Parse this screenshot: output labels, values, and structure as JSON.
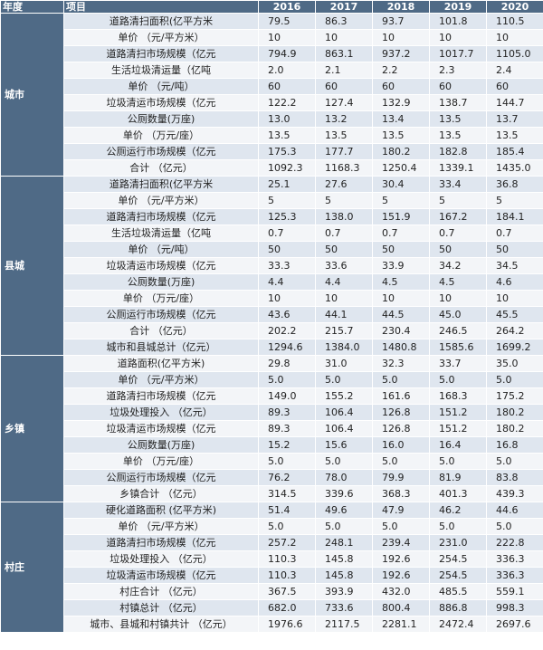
{
  "header": {
    "year_col": "年度",
    "item_col": "项目",
    "years": [
      "2016",
      "2017",
      "2018",
      "2019",
      "2020"
    ]
  },
  "groups": [
    {
      "name": "城市",
      "rows": [
        {
          "item": "道路清扫面积(亿平方米",
          "values": [
            "79.5",
            "86.3",
            "93.7",
            "101.8",
            "110.5"
          ]
        },
        {
          "item": "单价  （元/平方米）",
          "values": [
            "10",
            "10",
            "10",
            "10",
            "10"
          ]
        },
        {
          "item": "道路清扫市场规模（亿元",
          "values": [
            "794.9",
            "863.1",
            "937.2",
            "1017.7",
            "1105.0"
          ]
        },
        {
          "item": "生活垃圾清运量（亿吨",
          "values": [
            "2.0",
            "2.1",
            "2.2",
            "2.3",
            "2.4"
          ]
        },
        {
          "item": "单价  （元/吨）",
          "values": [
            "60",
            "60",
            "60",
            "60",
            "60"
          ]
        },
        {
          "item": "垃圾清运市场规模（亿元",
          "values": [
            "122.2",
            "127.4",
            "132.9",
            "138.7",
            "144.7"
          ]
        },
        {
          "item": "公厕数量(万座)",
          "values": [
            "13.0",
            "13.2",
            "13.4",
            "13.5",
            "13.7"
          ]
        },
        {
          "item": "单价  （万元/座）",
          "values": [
            "13.5",
            "13.5",
            "13.5",
            "13.5",
            "13.5"
          ]
        },
        {
          "item": "公厕运行市场规模（亿元",
          "values": [
            "175.3",
            "177.7",
            "180.2",
            "182.8",
            "185.4"
          ]
        },
        {
          "item": "合计  （亿元）",
          "values": [
            "1092.3",
            "1168.3",
            "1250.4",
            "1339.1",
            "1435.0"
          ]
        }
      ]
    },
    {
      "name": "县城",
      "rows": [
        {
          "item": "道路清扫面积(亿平方米",
          "values": [
            "25.1",
            "27.6",
            "30.4",
            "33.4",
            "36.8"
          ]
        },
        {
          "item": "单价  （元/平方米）",
          "values": [
            "5",
            "5",
            "5",
            "5",
            "5"
          ]
        },
        {
          "item": "道路清扫市场规模（亿元",
          "values": [
            "125.3",
            "138.0",
            "151.9",
            "167.2",
            "184.1"
          ]
        },
        {
          "item": "生活垃圾清运量（亿吨",
          "values": [
            "0.7",
            "0.7",
            "0.7",
            "0.7",
            "0.7"
          ]
        },
        {
          "item": "单价  （元/吨）",
          "values": [
            "50",
            "50",
            "50",
            "50",
            "50"
          ]
        },
        {
          "item": "垃圾清运市场规模（亿元",
          "values": [
            "33.3",
            "33.6",
            "33.9",
            "34.2",
            "34.5"
          ]
        },
        {
          "item": "公厕数量(万座)",
          "values": [
            "4.4",
            "4.4",
            "4.5",
            "4.5",
            "4.6"
          ]
        },
        {
          "item": "单价  （万元/座）",
          "values": [
            "10",
            "10",
            "10",
            "10",
            "10"
          ]
        },
        {
          "item": "公厕运行市场规模（亿元",
          "values": [
            "43.6",
            "44.1",
            "44.5",
            "45.0",
            "45.5"
          ]
        },
        {
          "item": "合计  （亿元）",
          "values": [
            "202.2",
            "215.7",
            "230.4",
            "246.5",
            "264.2"
          ]
        },
        {
          "item": "城市和县城总计（亿元）",
          "values": [
            "1294.6",
            "1384.0",
            "1480.8",
            "1585.6",
            "1699.2"
          ]
        }
      ]
    },
    {
      "name": "乡镇",
      "rows": [
        {
          "item": "道路面积(亿平方米)",
          "values": [
            "29.8",
            "31.0",
            "32.3",
            "33.7",
            "35.0"
          ]
        },
        {
          "item": "单价  （元/平方米）",
          "values": [
            "5.0",
            "5.0",
            "5.0",
            "5.0",
            "5.0"
          ]
        },
        {
          "item": "道路清扫市场规模（亿元",
          "values": [
            "149.0",
            "155.2",
            "161.6",
            "168.3",
            "175.2"
          ]
        },
        {
          "item": "垃圾处理投入  （亿元）",
          "values": [
            "89.3",
            "106.4",
            "126.8",
            "151.2",
            "180.2"
          ]
        },
        {
          "item": "垃圾清运市场规模（亿元",
          "values": [
            "89.3",
            "106.4",
            "126.8",
            "151.2",
            "180.2"
          ]
        },
        {
          "item": "公厕数量(万座)",
          "values": [
            "15.2",
            "15.6",
            "16.0",
            "16.4",
            "16.8"
          ]
        },
        {
          "item": "单价  （万元/座）",
          "values": [
            "5.0",
            "5.0",
            "5.0",
            "5.0",
            "5.0"
          ]
        },
        {
          "item": "公厕运行市场规模（亿元",
          "values": [
            "76.2",
            "78.0",
            "79.9",
            "81.9",
            "83.8"
          ]
        },
        {
          "item": "乡镇合计  （亿元）",
          "values": [
            "314.5",
            "339.6",
            "368.3",
            "401.3",
            "439.3"
          ]
        }
      ]
    },
    {
      "name": "村庄",
      "rows": [
        {
          "item": "硬化道路面积  (亿平方米)",
          "values": [
            "51.4",
            "49.6",
            "47.9",
            "46.2",
            "44.6"
          ]
        },
        {
          "item": "单价  （元/平方米）",
          "values": [
            "5.0",
            "5.0",
            "5.0",
            "5.0",
            "5.0"
          ]
        },
        {
          "item": "道路清扫市场规模（亿元",
          "values": [
            "257.2",
            "248.1",
            "239.4",
            "231.0",
            "222.8"
          ]
        },
        {
          "item": "垃圾处理投入  （亿元）",
          "values": [
            "110.3",
            "145.8",
            "192.6",
            "254.5",
            "336.3"
          ]
        },
        {
          "item": "垃圾清运市场规模（亿元",
          "values": [
            "110.3",
            "145.8",
            "192.6",
            "254.5",
            "336.3"
          ]
        },
        {
          "item": "村庄合计  （亿元）",
          "values": [
            "367.5",
            "393.9",
            "432.0",
            "485.5",
            "559.1"
          ]
        },
        {
          "item": "村镇总计  （亿元）",
          "values": [
            "682.0",
            "733.6",
            "800.4",
            "886.8",
            "998.3"
          ]
        },
        {
          "item": "城市、县城和村镇共计  （亿元）",
          "values": [
            "1976.6",
            "2117.5",
            "2281.1",
            "2472.4",
            "2697.6"
          ]
        }
      ]
    }
  ]
}
